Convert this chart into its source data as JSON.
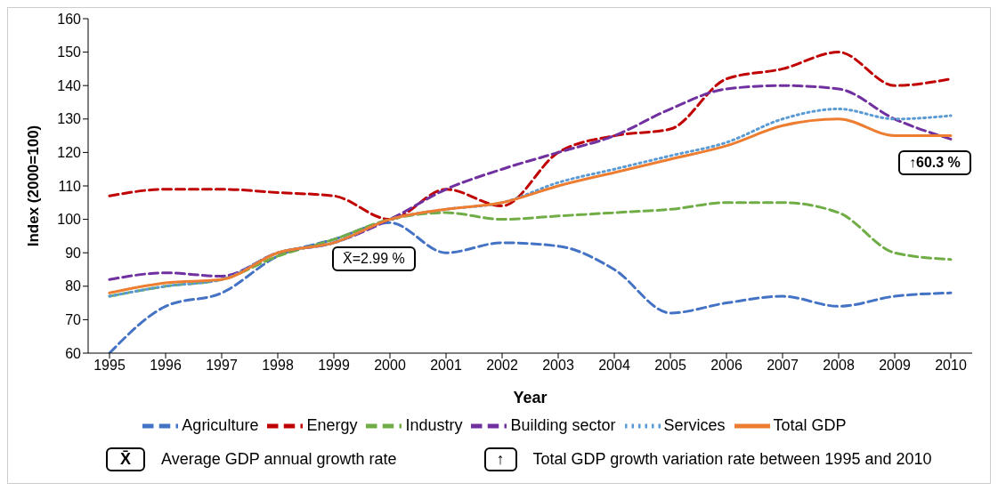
{
  "chart_data": {
    "type": "line",
    "xlabel": "Year",
    "ylabel": "Index (2000=100)",
    "categories": [
      "1995",
      "1996",
      "1997",
      "1998",
      "1999",
      "2000",
      "2001",
      "2002",
      "2003",
      "2004",
      "2005",
      "2006",
      "2007",
      "2008",
      "2009",
      "2010"
    ],
    "series": [
      {
        "name": "Agriculture",
        "color": "#4472c4",
        "line_style": "dashed",
        "values": [
          60,
          74,
          78,
          89,
          94,
          99,
          90,
          93,
          92,
          85,
          72,
          75,
          77,
          74,
          77,
          78
        ]
      },
      {
        "name": "Energy",
        "color": "#c00000",
        "line_style": "dashed",
        "values": [
          107,
          109,
          109,
          108,
          107,
          100,
          109,
          104,
          120,
          125,
          127,
          142,
          145,
          150,
          140,
          142
        ]
      },
      {
        "name": "Industry",
        "color": "#70ad47",
        "line_style": "dashed",
        "values": [
          77,
          80,
          82,
          89,
          94,
          100,
          102,
          100,
          101,
          102,
          103,
          105,
          105,
          102,
          90,
          88
        ]
      },
      {
        "name": "Building sector",
        "color": "#7030a0",
        "line_style": "dashed",
        "values": [
          82,
          84,
          83,
          90,
          93,
          100,
          109,
          115,
          120,
          125,
          133,
          139,
          140,
          139,
          130,
          124
        ]
      },
      {
        "name": "Services",
        "color": "#5b9bd5",
        "line_style": "dotted",
        "values": [
          77,
          80,
          82,
          90,
          93,
          100,
          103,
          105,
          111,
          115,
          119,
          123,
          130,
          133,
          130,
          131
        ]
      },
      {
        "name": "Total GDP",
        "color": "#ed7d31",
        "line_style": "solid",
        "values": [
          78,
          81,
          82,
          90,
          93,
          100,
          103,
          105,
          110,
          114,
          118,
          122,
          128,
          130,
          125,
          125
        ]
      }
    ],
    "ylim": [
      60,
      160
    ],
    "yticks": [
      60,
      70,
      80,
      90,
      100,
      110,
      120,
      130,
      140,
      150,
      160
    ],
    "grid": false,
    "legend": "bottom",
    "marker": "none",
    "annotations": [
      "X̄=2.99 %",
      "↑60.3 %",
      "X̄",
      "Average GDP annual growth rate",
      "↑",
      "Total GDP growth variation rate between 1995 and 2010"
    ]
  }
}
